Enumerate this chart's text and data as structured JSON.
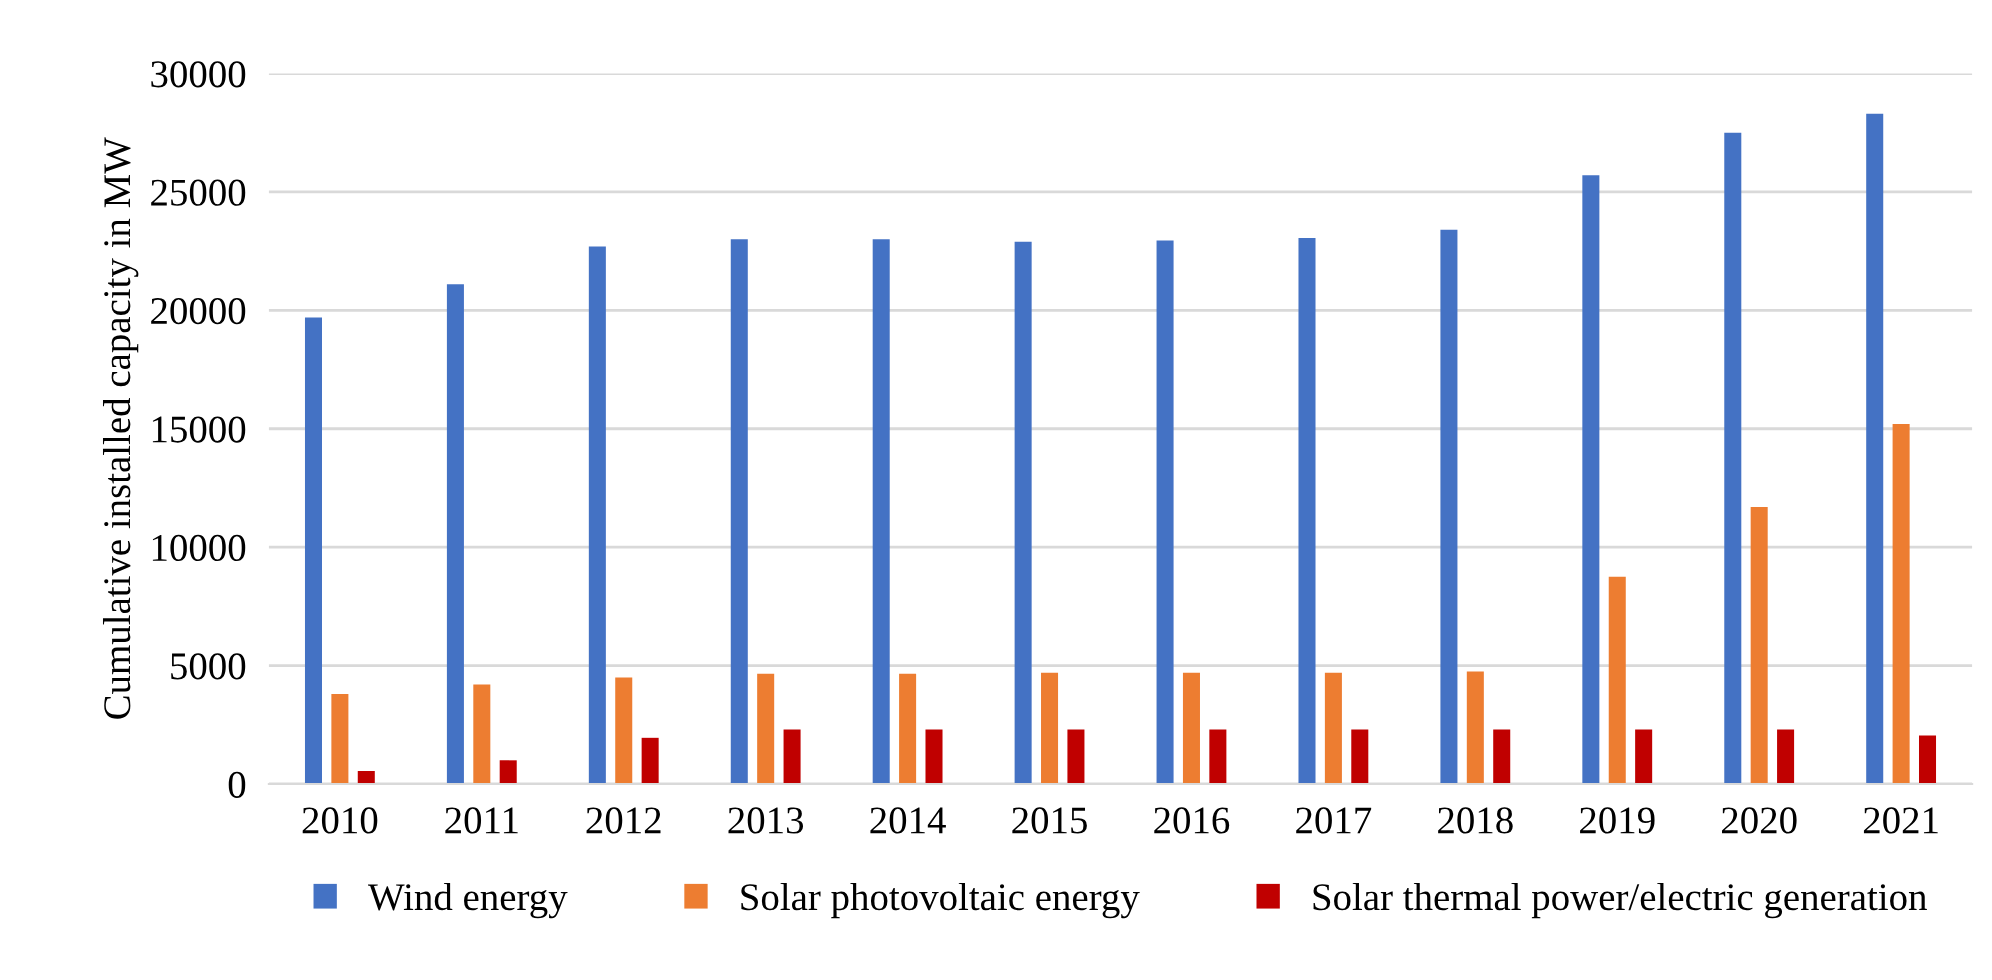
{
  "chart_data": {
    "type": "bar",
    "ylabel": "Cumulative installed capacity in MW",
    "categories": [
      "2010",
      "2011",
      "2012",
      "2013",
      "2014",
      "2015",
      "2016",
      "2017",
      "2018",
      "2019",
      "2020",
      "2021"
    ],
    "series": [
      {
        "name": "Wind energy",
        "color": "#4472c4",
        "values": [
          19700,
          21100,
          22700,
          23000,
          23000,
          22900,
          22950,
          23050,
          23400,
          25700,
          27500,
          28300
        ]
      },
      {
        "name": "Solar photovoltaic energy",
        "color": "#ed7d31",
        "values": [
          3800,
          4200,
          4500,
          4650,
          4650,
          4700,
          4700,
          4700,
          4750,
          8750,
          11700,
          15200
        ]
      },
      {
        "name": "Solar thermal power/electric generation",
        "color": "#c00000",
        "values": [
          550,
          1000,
          1950,
          2300,
          2300,
          2300,
          2300,
          2300,
          2300,
          2300,
          2300,
          2050
        ]
      }
    ],
    "ylim": [
      0,
      30000
    ],
    "yticks": [
      0,
      5000,
      10000,
      15000,
      20000,
      25000,
      30000
    ],
    "grid": "y",
    "legend": "bottom"
  }
}
